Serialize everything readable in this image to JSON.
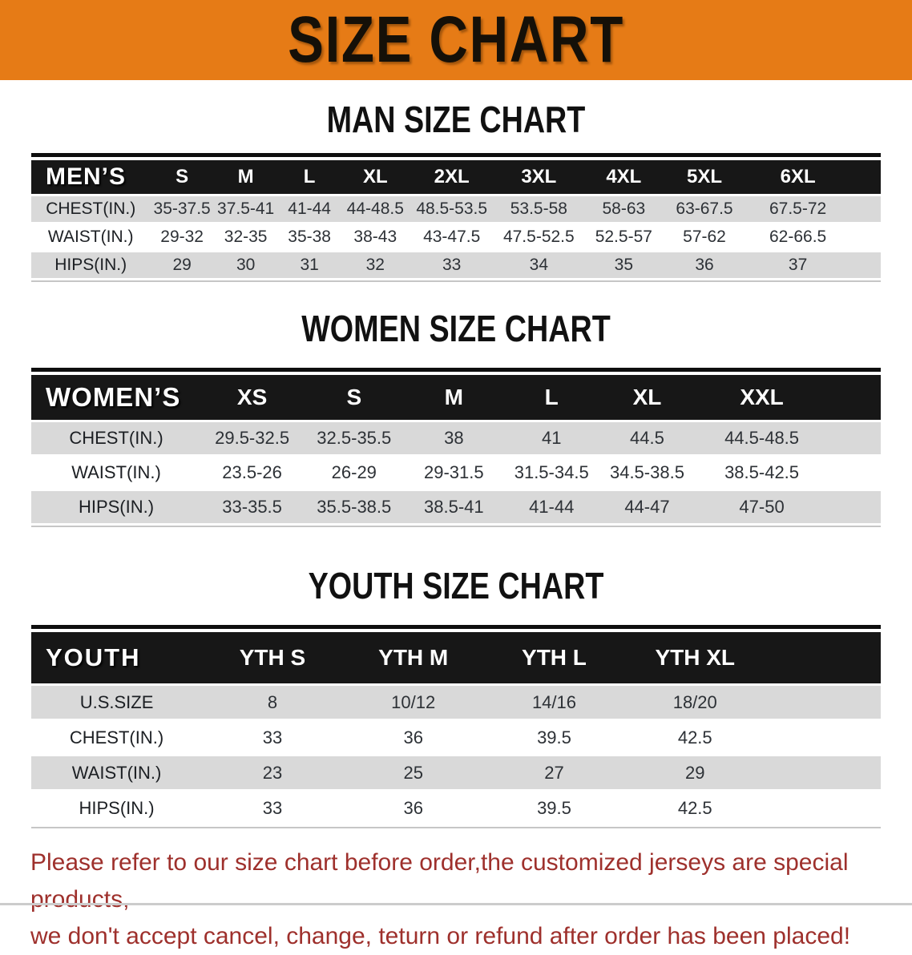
{
  "banner": {
    "title": "SIZE CHART"
  },
  "sections": [
    {
      "heading": "MAN SIZE CHART",
      "table": {
        "header_label": "MEN’S",
        "columns": [
          "S",
          "M",
          "L",
          "XL",
          "2XL",
          "3XL",
          "4XL",
          "5XL",
          "6XL"
        ],
        "rows": [
          {
            "label": "CHEST(IN.)",
            "values": [
              "35-37.5",
              "37.5-41",
              "41-44",
              "44-48.5",
              "48.5-53.5",
              "53.5-58",
              "58-63",
              "63-67.5",
              "67.5-72"
            ]
          },
          {
            "label": "WAIST(IN.)",
            "values": [
              "29-32",
              "32-35",
              "35-38",
              "38-43",
              "43-47.5",
              "47.5-52.5",
              "52.5-57",
              "57-62",
              "62-66.5"
            ]
          },
          {
            "label": "HIPS(IN.)",
            "values": [
              "29",
              "30",
              "31",
              "32",
              "33",
              "34",
              "35",
              "36",
              "37"
            ]
          }
        ]
      }
    },
    {
      "heading": "WOMEN SIZE CHART",
      "table": {
        "header_label": "WOMEN’S",
        "columns": [
          "XS",
          "S",
          "M",
          "L",
          "XL",
          "XXL"
        ],
        "rows": [
          {
            "label": "CHEST(IN.)",
            "values": [
              "29.5-32.5",
              "32.5-35.5",
              "38",
              "41",
              "44.5",
              "44.5-48.5"
            ]
          },
          {
            "label": "WAIST(IN.)",
            "values": [
              "23.5-26",
              "26-29",
              "29-31.5",
              "31.5-34.5",
              "34.5-38.5",
              "38.5-42.5"
            ]
          },
          {
            "label": "HIPS(IN.)",
            "values": [
              "33-35.5",
              "35.5-38.5",
              "38.5-41",
              "41-44",
              "44-47",
              "47-50"
            ]
          }
        ]
      }
    },
    {
      "heading": "YOUTH SIZE CHART",
      "table": {
        "header_label": "YOUTH",
        "columns": [
          "YTH S",
          "YTH M",
          "YTH L",
          "YTH XL"
        ],
        "rows": [
          {
            "label": "U.S.SIZE",
            "values": [
              "8",
              "10/12",
              "14/16",
              "18/20"
            ]
          },
          {
            "label": "CHEST(IN.)",
            "values": [
              "33",
              "36",
              "39.5",
              "42.5"
            ]
          },
          {
            "label": "WAIST(IN.)",
            "values": [
              "23",
              "25",
              "27",
              "29"
            ]
          },
          {
            "label": "HIPS(IN.)",
            "values": [
              "33",
              "36",
              "39.5",
              "42.5"
            ]
          }
        ]
      }
    }
  ],
  "footer_note": {
    "line1": "Please refer to our size chart before order,the customized jerseys are special products,",
    "line2": "we don't accept cancel, change, teturn or refund after order has been placed!"
  },
  "colors": {
    "banner_orange": "#e67b16",
    "table_header_black": "#171717",
    "row_gray": "#d9d9d9",
    "note_red": "#9e302c"
  }
}
